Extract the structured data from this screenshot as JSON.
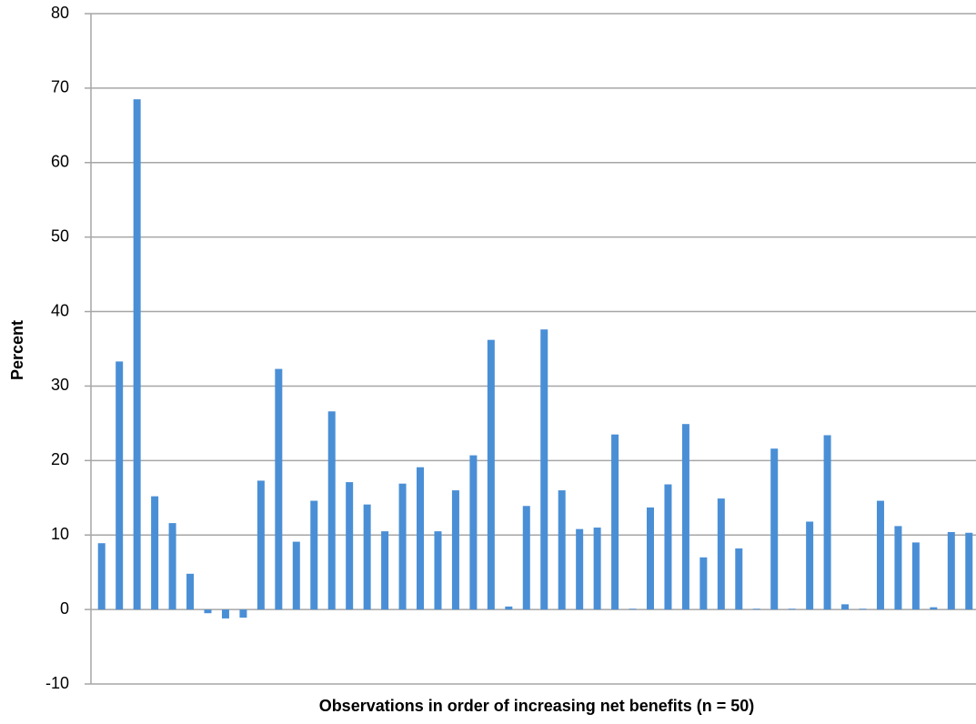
{
  "chart_data": {
    "type": "bar",
    "y_label": "Percent",
    "x_label": "Observations in order of increasing net benefits (n = 50)",
    "categories": [
      null,
      null,
      null,
      null,
      null,
      null,
      null,
      null,
      null,
      null,
      null,
      null,
      null,
      null,
      null,
      null,
      null,
      null,
      null,
      null,
      null,
      null,
      null,
      null,
      null,
      null,
      null,
      null,
      null,
      null,
      null,
      null,
      null,
      null,
      null,
      null,
      null,
      null,
      null,
      null,
      null,
      null,
      null,
      null,
      null,
      null,
      null,
      null,
      null,
      null
    ],
    "values": [
      8.9,
      33.3,
      68.5,
      15.2,
      11.6,
      4.8,
      -0.5,
      -1.2,
      -1.1,
      17.3,
      32.3,
      9.1,
      14.6,
      26.6,
      17.1,
      14.1,
      10.5,
      16.9,
      19.1,
      10.5,
      16.0,
      20.7,
      36.2,
      0.4,
      13.9,
      37.6,
      16.0,
      10.8,
      11.0,
      23.5,
      0.1,
      13.7,
      16.8,
      24.9,
      7.0,
      14.9,
      8.2,
      0.1,
      21.6,
      0.1,
      11.8,
      23.4,
      0.7,
      0.1,
      14.6,
      11.2,
      9.0,
      0.3,
      10.4,
      10.3
    ],
    "color": "#4a8fd6",
    "ylim": [
      -10,
      80
    ],
    "yticks": [
      -10,
      0,
      10,
      20,
      30,
      40,
      50,
      60,
      70,
      80
    ],
    "grid": true
  }
}
